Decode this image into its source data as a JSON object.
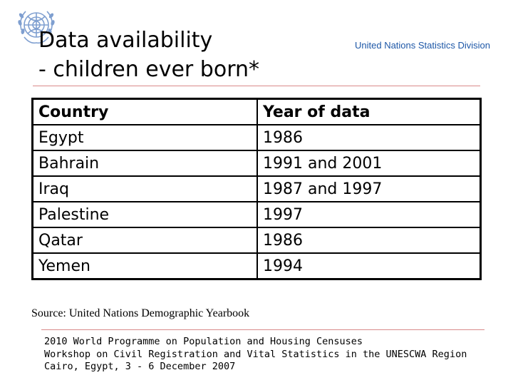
{
  "title": {
    "line1": "Data availability",
    "line2": "- children ever born*"
  },
  "org_name": "United Nations Statistics Division",
  "logo": {
    "icon": "un-emblem-icon",
    "color": "#7f9fd0"
  },
  "table": {
    "headers": [
      "Country",
      "Year of data"
    ],
    "rows": [
      [
        "Egypt",
        "1986"
      ],
      [
        "Bahrain",
        "1991 and 2001"
      ],
      [
        "Iraq",
        "1987 and 1997"
      ],
      [
        "Palestine",
        "1997"
      ],
      [
        "Qatar",
        "1986"
      ],
      [
        "Yemen",
        "1994"
      ]
    ]
  },
  "source": "Source: United Nations Demographic Yearbook",
  "footer": {
    "line1": "2010 World Programme on Population and Housing Censuses",
    "line2": "Workshop on Civil Registration and Vital Statistics in the UNESCWA Region",
    "line3": "Cairo, Egypt, 3 - 6 December 2007"
  },
  "colors": {
    "org_text": "#1d57a7",
    "rule": "#d98a8a"
  }
}
